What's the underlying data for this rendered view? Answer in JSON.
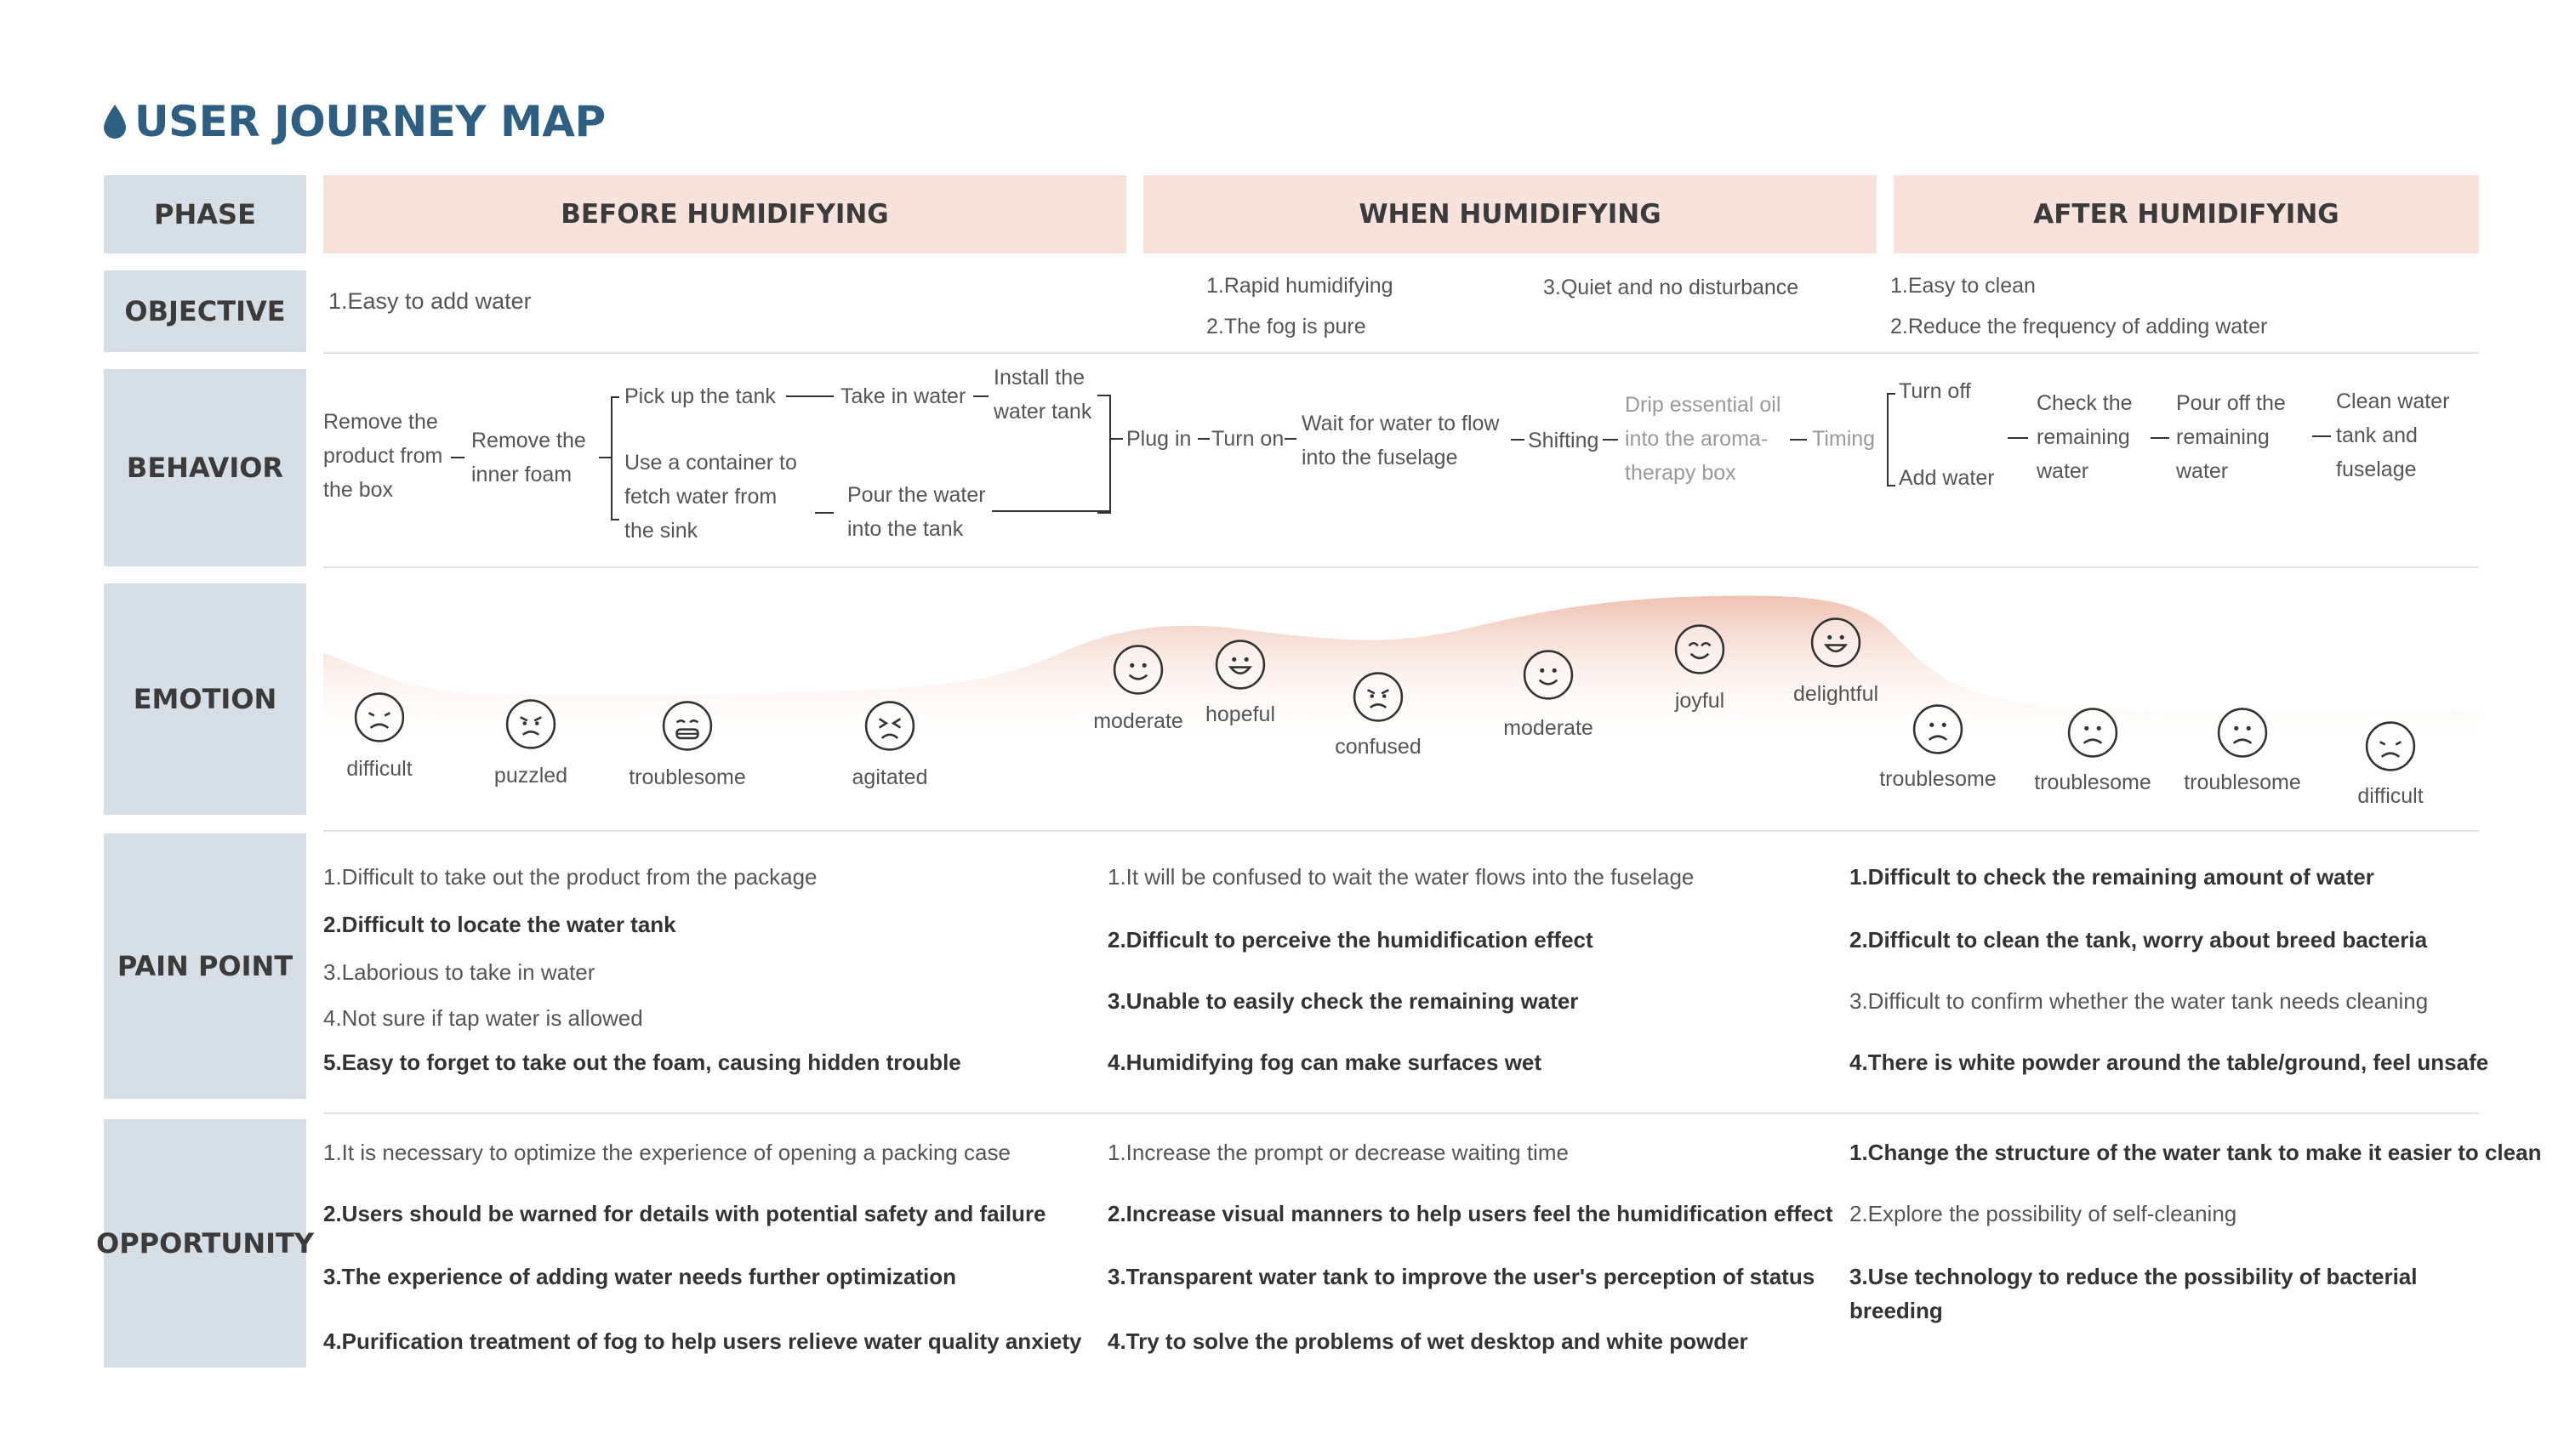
{
  "title": "USER JOURNEY MAP",
  "row_labels": {
    "phase": "PHASE",
    "objective": "OBJECTIVE",
    "behavior": "BEHAVIOR",
    "emotion": "EMOTION",
    "pain_point": "PAIN POINT",
    "opportunity": "OPPORTUNITY"
  },
  "phases": [
    "BEFORE HUMIDIFYING",
    "WHEN HUMIDIFYING",
    "AFTER HUMIDIFYING"
  ],
  "objectives": {
    "before": [
      "1.Easy to add water"
    ],
    "when": [
      "1.Rapid humidifying",
      "2.The fog is pure",
      "3.Quiet and no disturbance"
    ],
    "after": [
      "1.Easy to clean",
      "2.Reduce the frequency of adding water"
    ]
  },
  "behavior": {
    "remove_box": [
      "Remove the",
      "product from",
      "the box"
    ],
    "remove_foam": [
      "Remove the",
      "inner foam"
    ],
    "pick_tank": "Pick up the tank",
    "take_water": "Take in water",
    "install_tank": [
      "Install the",
      "water tank"
    ],
    "use_container": [
      "Use a container to",
      "fetch water from",
      "the sink"
    ],
    "pour_water": [
      "Pour the water",
      "into the tank"
    ],
    "plug_in": "Plug in",
    "turn_on": "Turn on",
    "wait_water": [
      "Wait for water to flow",
      "into the fuselage"
    ],
    "shifting": "Shifting",
    "drip_oil": [
      "Drip essential oil",
      "into the aroma-",
      "therapy box"
    ],
    "timing": "Timing",
    "turn_off": "Turn off",
    "add_water": "Add water",
    "check_remaining": [
      "Check the",
      "remaining",
      "water"
    ],
    "pour_off": [
      "Pour off the",
      "remaining",
      "water"
    ],
    "clean_tank": [
      "Clean water",
      "tank and",
      "fuselage"
    ]
  },
  "emotions": [
    {
      "label": "difficult",
      "face": "sad"
    },
    {
      "label": "puzzled",
      "face": "frown"
    },
    {
      "label": "troublesome",
      "face": "grimace"
    },
    {
      "label": "agitated",
      "face": "squint"
    },
    {
      "label": "moderate",
      "face": "smile"
    },
    {
      "label": "hopeful",
      "face": "grin"
    },
    {
      "label": "confused",
      "face": "frown"
    },
    {
      "label": "moderate",
      "face": "smile"
    },
    {
      "label": "joyful",
      "face": "happy"
    },
    {
      "label": "delightful",
      "face": "grin"
    },
    {
      "label": "troublesome",
      "face": "sad-flat"
    },
    {
      "label": "troublesome",
      "face": "sad-flat"
    },
    {
      "label": "troublesome",
      "face": "sad-flat"
    },
    {
      "label": "difficult",
      "face": "sad"
    }
  ],
  "pain_points": {
    "before": [
      {
        "text": "1.Difficult to take out the product from the package",
        "bold": false
      },
      {
        "text": "2.Difficult to locate the water tank",
        "bold": true
      },
      {
        "text": "3.Laborious to take in water",
        "bold": false
      },
      {
        "text": "4.Not sure if tap water is allowed",
        "bold": false
      },
      {
        "text": "5.Easy to forget to take out the foam, causing hidden trouble",
        "bold": true
      }
    ],
    "when": [
      {
        "text": "1.It will be confused to wait the water flows into the fuselage",
        "bold": false
      },
      {
        "text": "2.Difficult to perceive the humidification effect",
        "bold": true
      },
      {
        "text": "3.Unable to easily check the remaining water",
        "bold": true
      },
      {
        "text": "4.Humidifying fog can make surfaces wet",
        "bold": true
      }
    ],
    "after": [
      {
        "text": "1.Difficult to check the remaining amount of water",
        "bold": true
      },
      {
        "text": "2.Difficult to clean the tank, worry about breed bacteria",
        "bold": true
      },
      {
        "text": "3.Difficult to confirm whether the water tank needs cleaning",
        "bold": false
      },
      {
        "text": "4.There is white powder around the table/ground, feel unsafe",
        "bold": true
      }
    ]
  },
  "opportunities": {
    "before": [
      {
        "text": "1.It is necessary to optimize the experience of opening a packing case",
        "bold": false
      },
      {
        "text": "2.Users should be warned for details with potential safety and failure",
        "bold": true
      },
      {
        "text": "3.The experience of adding water needs further optimization",
        "bold": true
      },
      {
        "text": "4.Purification treatment of fog to help users relieve water quality anxiety",
        "bold": true
      }
    ],
    "when": [
      {
        "text": "1.Increase the prompt or decrease waiting time",
        "bold": false
      },
      {
        "text": "2.Increase visual manners to help users feel the humidification effect",
        "bold": true
      },
      {
        "text": "3.Transparent water tank to improve the user's perception of status",
        "bold": true
      },
      {
        "text": "4.Try to solve the problems of wet desktop and white powder",
        "bold": true
      }
    ],
    "after": [
      {
        "text": "1.Change the structure of the water tank to make it easier to clean",
        "bold": true
      },
      {
        "text": "2.Explore the possibility of self-cleaning",
        "bold": false
      },
      {
        "text": "3.Use technology to reduce the possibility of bacterial",
        "bold": true
      },
      {
        "text": "breeding",
        "bold": true
      }
    ]
  },
  "colors": {
    "title": "#2e5f83",
    "row_header_bg": "#d6dfe5",
    "phase_bg": "#f7e2dc",
    "emotion_curve": "#eebfae"
  }
}
